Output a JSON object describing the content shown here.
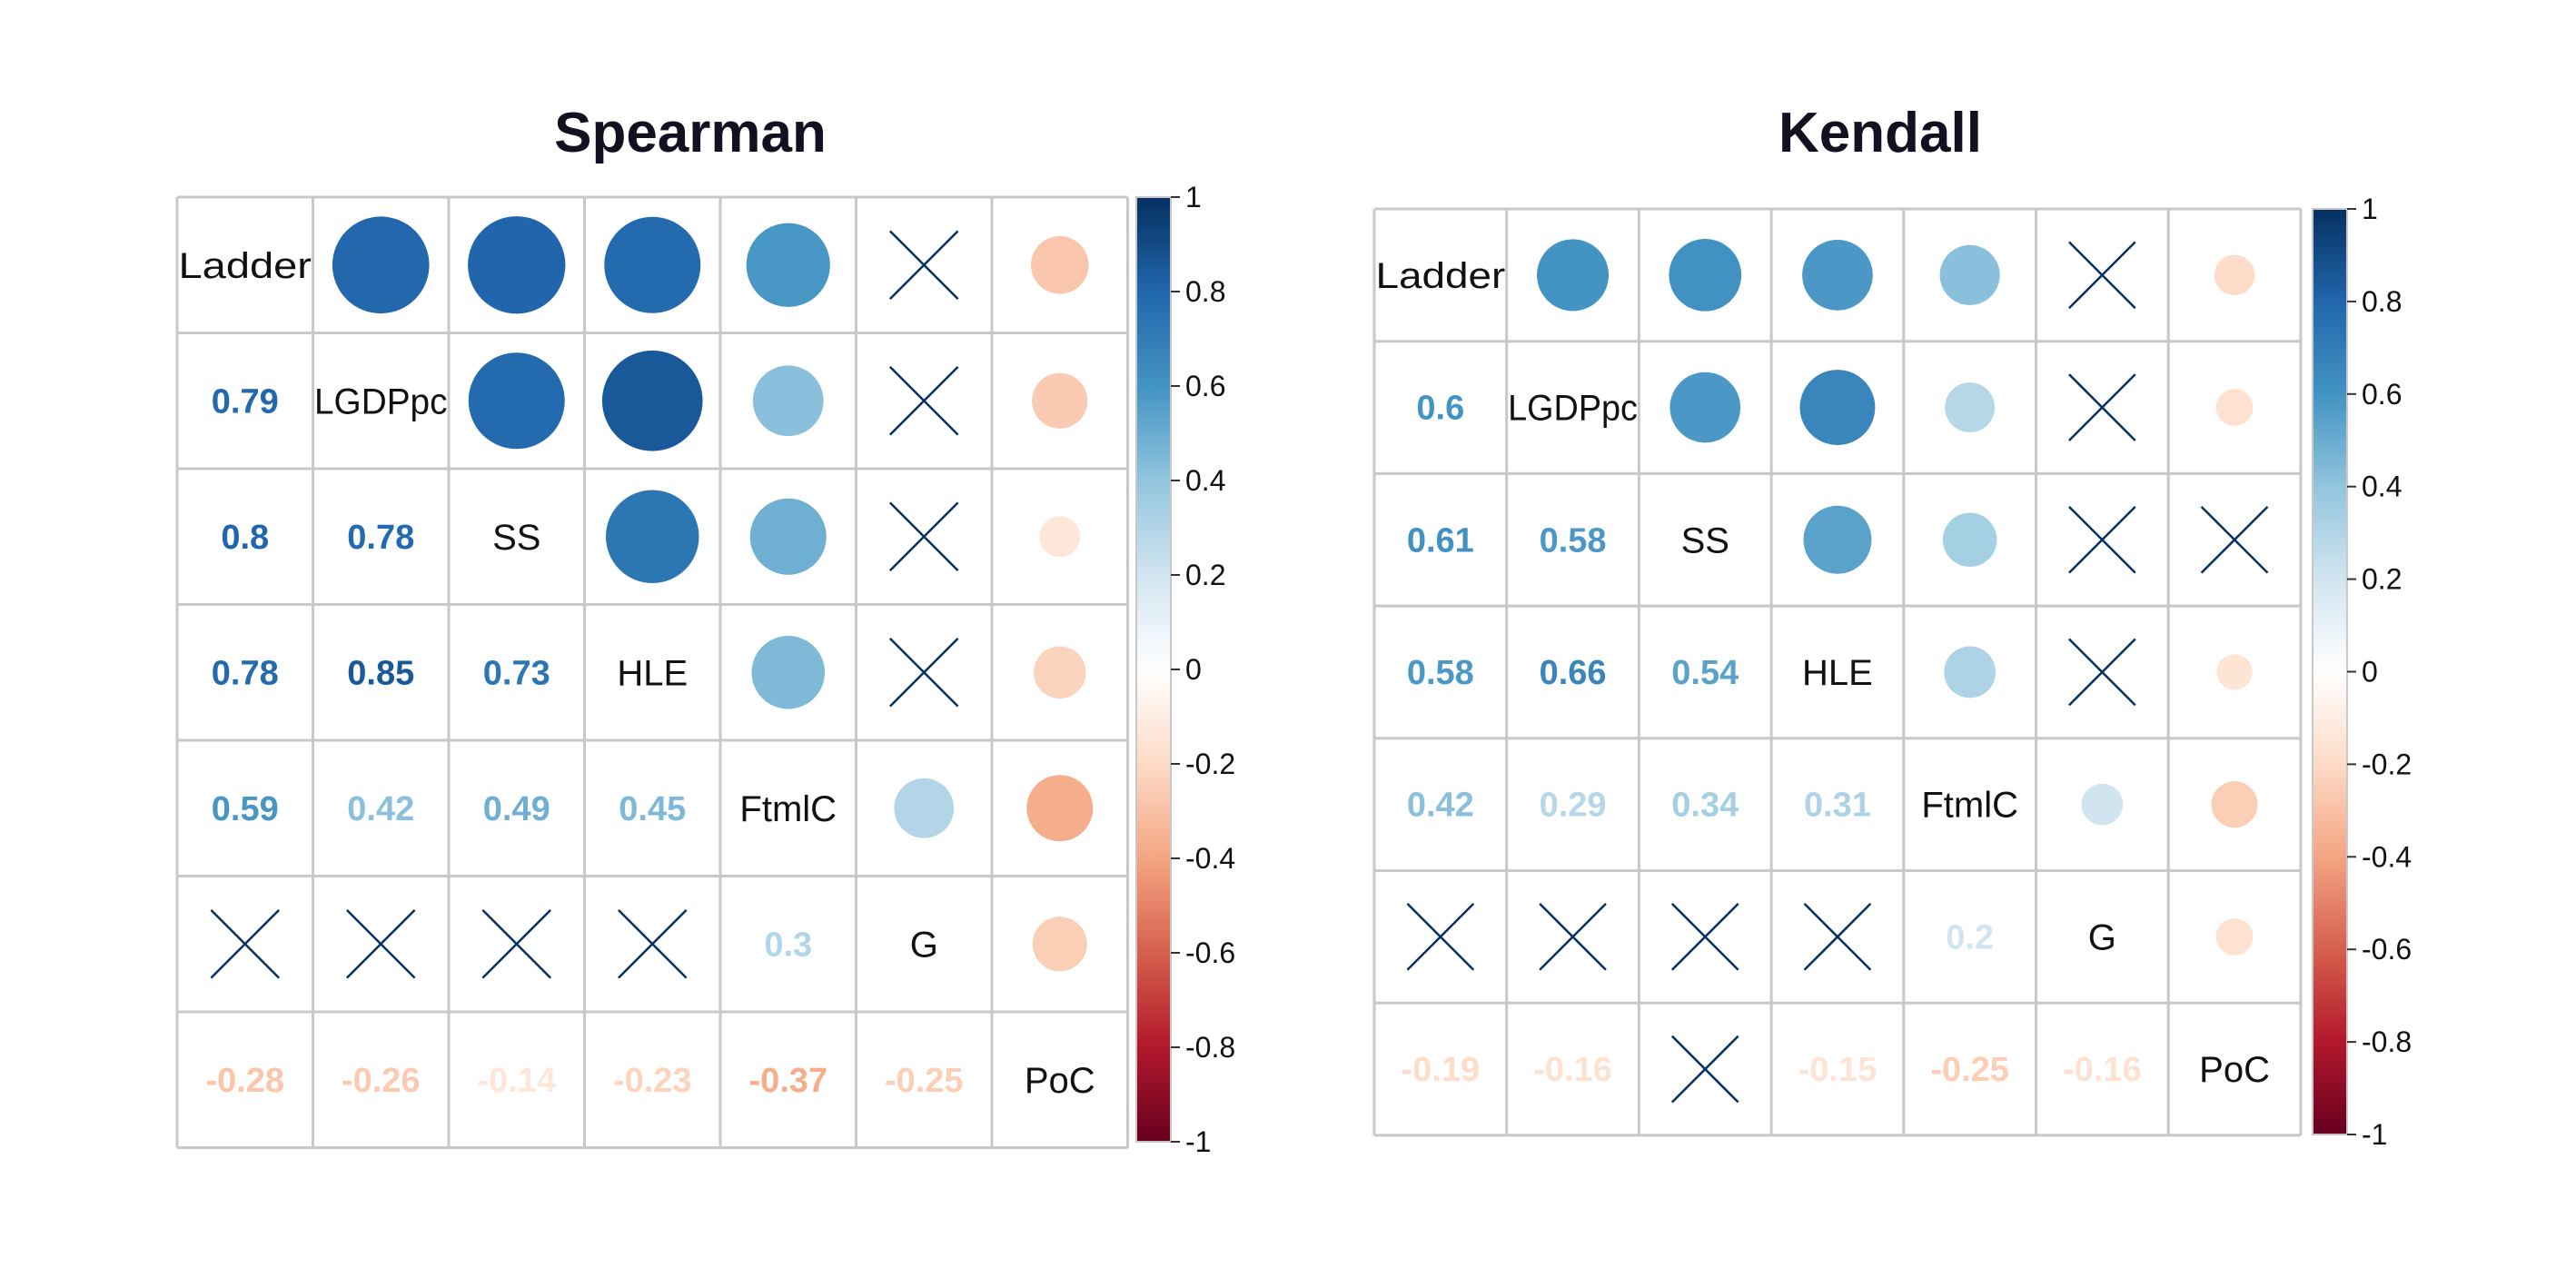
{
  "chart_data": [
    {
      "type": "heatmap",
      "title": "Spearman",
      "variables": [
        "Ladder",
        "LGDPpc",
        "SS",
        "HLE",
        "FtmlC",
        "G",
        "PoC"
      ],
      "matrix": [
        [
          1,
          0.79,
          0.8,
          0.78,
          0.59,
          null,
          -0.28
        ],
        [
          0.79,
          1,
          0.78,
          0.85,
          0.42,
          null,
          -0.26
        ],
        [
          0.8,
          0.78,
          1,
          0.73,
          0.49,
          null,
          -0.14
        ],
        [
          0.78,
          0.85,
          0.73,
          1,
          0.45,
          null,
          -0.23
        ],
        [
          0.59,
          0.42,
          0.49,
          0.45,
          1,
          0.3,
          -0.37
        ],
        [
          null,
          null,
          null,
          null,
          0.3,
          1,
          -0.25
        ],
        [
          -0.28,
          -0.26,
          -0.14,
          -0.23,
          -0.37,
          -0.25,
          1
        ]
      ],
      "lower_triangle": "numbers",
      "upper_triangle": "circles",
      "insignificant_mark": "cross",
      "colorbar": {
        "range": [
          -1,
          1
        ],
        "ticks": [
          "1",
          "0.8",
          "0.6",
          "0.4",
          "0.2",
          "0",
          "-0.2",
          "-0.4",
          "-0.6",
          "-0.8",
          "-1"
        ],
        "palette": [
          "#67001F",
          "#B2182B",
          "#D6604D",
          "#F4A582",
          "#FDDBC7",
          "#FFFFFF",
          "#D1E5F0",
          "#92C5DE",
          "#4393C3",
          "#2166AC",
          "#053061"
        ]
      }
    },
    {
      "type": "heatmap",
      "title": "Kendall",
      "variables": [
        "Ladder",
        "LGDPpc",
        "SS",
        "HLE",
        "FtmlC",
        "G",
        "PoC"
      ],
      "matrix": [
        [
          1,
          0.6,
          0.61,
          0.58,
          0.42,
          null,
          -0.19
        ],
        [
          0.6,
          1,
          0.58,
          0.66,
          0.29,
          null,
          -0.16
        ],
        [
          0.61,
          0.58,
          1,
          0.54,
          0.34,
          null,
          null
        ],
        [
          0.58,
          0.66,
          0.54,
          1,
          0.31,
          null,
          -0.15
        ],
        [
          0.42,
          0.29,
          0.34,
          0.31,
          1,
          0.2,
          -0.25
        ],
        [
          null,
          null,
          null,
          null,
          0.2,
          1,
          -0.16
        ],
        [
          -0.19,
          -0.16,
          null,
          -0.15,
          -0.25,
          -0.16,
          1
        ]
      ],
      "lower_triangle": "numbers",
      "upper_triangle": "circles",
      "insignificant_mark": "cross",
      "colorbar": {
        "range": [
          -1,
          1
        ],
        "ticks": [
          "1",
          "0.8",
          "0.6",
          "0.4",
          "0.2",
          "0",
          "-0.2",
          "-0.4",
          "-0.6",
          "-0.8",
          "-1"
        ],
        "palette": [
          "#67001F",
          "#B2182B",
          "#D6604D",
          "#F4A582",
          "#FDDBC7",
          "#FFFFFF",
          "#D1E5F0",
          "#92C5DE",
          "#4393C3",
          "#2166AC",
          "#053061"
        ]
      }
    }
  ]
}
